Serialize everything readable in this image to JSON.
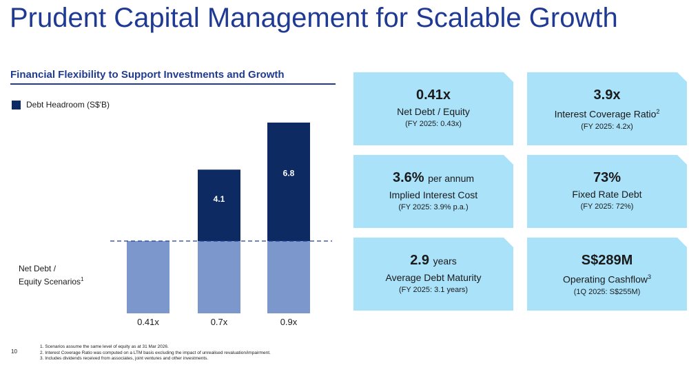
{
  "title": "Prudent Capital Management for Scalable Growth",
  "section_heading": "Financial Flexibility to Support Investments and Growth",
  "legend_label": "Debt Headroom (S$'B)",
  "scenario_label_line1": "Net Debt /",
  "scenario_label_line2": "Equity Scenarios",
  "scenario_label_sup": "1",
  "chart_data": {
    "type": "bar",
    "categories": [
      "0.41x",
      "0.7x",
      "0.9x"
    ],
    "series": [
      {
        "name": "Debt Headroom (S$'B)",
        "values": [
          0,
          4.1,
          6.8
        ],
        "color": "#0d2a63"
      }
    ],
    "base_color": "#7b97cc",
    "reference_line": "dashed",
    "data_labels": [
      "",
      "4.1",
      "6.8"
    ]
  },
  "kpis": [
    {
      "value": "0.41x",
      "unit": "",
      "label": "Net Debt / Equity",
      "sup": "",
      "sub": "(FY 2025: 0.43x)"
    },
    {
      "value": "3.9x",
      "unit": "",
      "label": "Interest Coverage Ratio",
      "sup": "2",
      "sub": "(FY 2025: 4.2x)"
    },
    {
      "value": "3.6%",
      "unit": "per annum",
      "label": "Implied Interest Cost",
      "sup": "",
      "sub": "(FY 2025: 3.9% p.a.)"
    },
    {
      "value": "73%",
      "unit": "",
      "label": "Fixed Rate Debt",
      "sup": "",
      "sub": "(FY 2025: 72%)"
    },
    {
      "value": "2.9",
      "unit": "years",
      "label": "Average Debt Maturity",
      "sup": "",
      "sub": "(FY 2025: 3.1 years)"
    },
    {
      "value": "S$289M",
      "unit": "",
      "label": "Operating Cashflow",
      "sup": "3",
      "sub": "(1Q 2025: S$255M)"
    }
  ],
  "colors": {
    "accent": "#1f3a93",
    "dark_bar": "#0d2a63",
    "base_bar": "#7b97cc",
    "kpi_bg": "#a9e2f9"
  },
  "footnotes": [
    "1.  Scenarios assume the same level of equity as at 31 Mar 2026.",
    "2.  Interest Coverage Ratio was computed on a LTM basis excluding the impact of unrealised revaluation/impairment.",
    "3.  Includes dividends received from associates, joint ventures and other investments."
  ],
  "page_number": "10"
}
